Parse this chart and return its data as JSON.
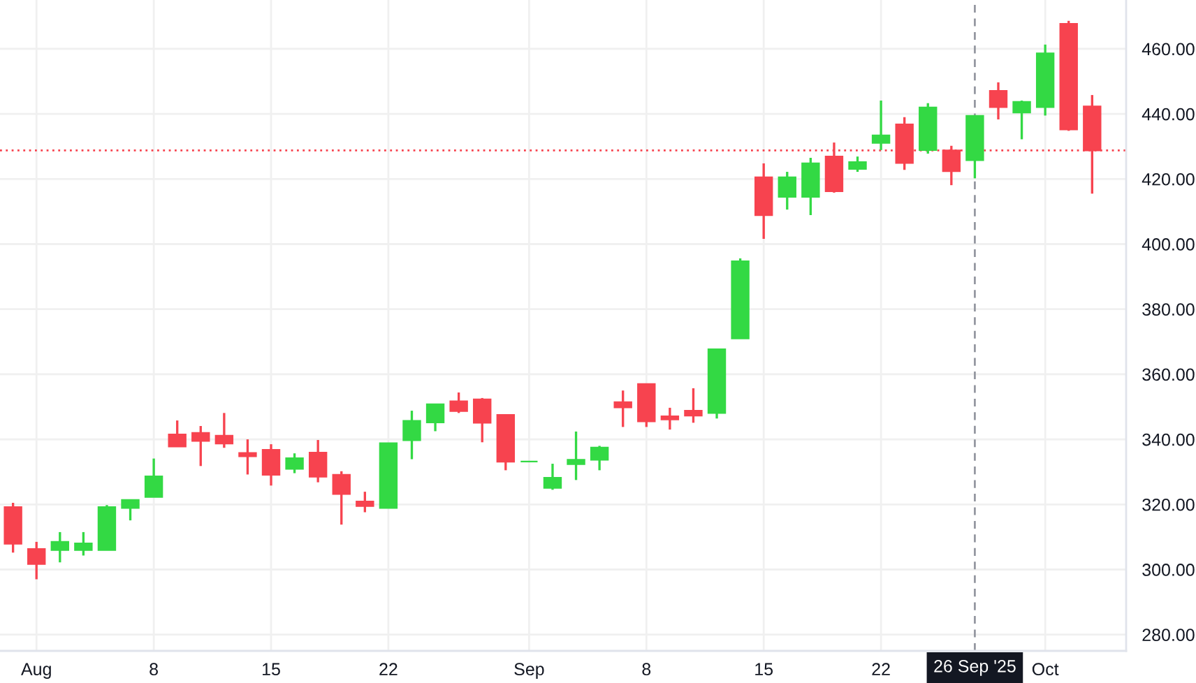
{
  "chart_data": {
    "type": "candlestick",
    "categories": [
      null,
      "Aug",
      null,
      null,
      null,
      null,
      "8",
      null,
      null,
      null,
      null,
      "15",
      null,
      null,
      null,
      null,
      "22",
      null,
      null,
      null,
      null,
      null,
      "Sep",
      null,
      null,
      null,
      null,
      "8",
      null,
      null,
      null,
      null,
      "15",
      null,
      null,
      null,
      null,
      "22",
      null,
      null,
      null,
      "26 Sep '25",
      null,
      null,
      "Oct",
      null,
      null
    ],
    "ohlc": [
      [
        319.2,
        320.5,
        305.2,
        307.9
      ],
      [
        306.3,
        308.5,
        297.0,
        301.7
      ],
      [
        306.0,
        311.5,
        302.2,
        308.5
      ],
      [
        306.0,
        311.5,
        304.3,
        308.0
      ],
      [
        306.0,
        319.8,
        306.0,
        319.2
      ],
      [
        318.9,
        321.4,
        315.1,
        321.4
      ],
      [
        322.3,
        334.1,
        322.3,
        328.6
      ],
      [
        341.5,
        345.8,
        337.8,
        337.8
      ],
      [
        342.0,
        344.1,
        331.8,
        339.5
      ],
      [
        341.1,
        348.1,
        337.4,
        338.7
      ],
      [
        335.8,
        340.0,
        329.2,
        334.8
      ],
      [
        336.8,
        338.5,
        325.8,
        329.1
      ],
      [
        330.9,
        335.7,
        329.6,
        334.2
      ],
      [
        335.9,
        339.8,
        326.8,
        328.5
      ],
      [
        329.1,
        330.2,
        313.8,
        323.2
      ],
      [
        320.9,
        323.9,
        317.6,
        319.5
      ],
      [
        318.9,
        338.8,
        318.9,
        338.8
      ],
      [
        339.7,
        348.8,
        333.9,
        345.7
      ],
      [
        345.2,
        350.8,
        342.5,
        350.8
      ],
      [
        351.7,
        354.4,
        348.1,
        348.7
      ],
      [
        352.3,
        352.7,
        339.1,
        345.1
      ],
      [
        347.5,
        347.5,
        330.5,
        333.1
      ],
      [
        333.2,
        333.2,
        333.2,
        333.2
      ],
      [
        325.1,
        332.5,
        324.5,
        328.2
      ],
      [
        332.4,
        342.4,
        327.5,
        333.7
      ],
      [
        333.7,
        338.0,
        330.5,
        337.5
      ],
      [
        351.4,
        355.0,
        343.8,
        349.8
      ],
      [
        357.0,
        357.0,
        343.8,
        345.5
      ],
      [
        347.1,
        349.7,
        343.0,
        346.1
      ],
      [
        348.8,
        355.7,
        345.1,
        347.3
      ],
      [
        348.1,
        367.7,
        346.4,
        367.7
      ],
      [
        371.0,
        395.6,
        371.0,
        394.7
      ],
      [
        420.5,
        424.8,
        401.6,
        408.9
      ],
      [
        414.5,
        422.2,
        410.6,
        420.5
      ],
      [
        414.5,
        426.5,
        408.9,
        424.8
      ],
      [
        426.9,
        431.2,
        415.8,
        416.2
      ],
      [
        423.1,
        426.9,
        422.2,
        425.2
      ],
      [
        431.1,
        444.1,
        428.9,
        433.4
      ],
      [
        436.8,
        439.0,
        422.8,
        424.9
      ],
      [
        428.9,
        443.3,
        427.8,
        442.0
      ],
      [
        428.8,
        430.2,
        418.1,
        422.4
      ],
      [
        425.8,
        439.4,
        420.2,
        439.4
      ],
      [
        447.1,
        449.7,
        438.3,
        442.1
      ],
      [
        440.4,
        444.1,
        432.2,
        443.7
      ],
      [
        442.1,
        461.3,
        439.5,
        458.6
      ],
      [
        467.7,
        468.6,
        434.8,
        435.2
      ],
      [
        442.3,
        445.8,
        415.5,
        428.8
      ]
    ],
    "colors": [
      "#f7434f",
      "#f7434f",
      "#33d944",
      "#33d944",
      "#33d944",
      "#33d944",
      "#33d944",
      "#f7434f",
      "#f7434f",
      "#f7434f",
      "#f7434f",
      "#f7434f",
      "#33d944",
      "#f7434f",
      "#f7434f",
      "#f7434f",
      "#33d944",
      "#33d944",
      "#33d944",
      "#f7434f",
      "#f7434f",
      "#f7434f",
      "#33d944",
      "#33d944",
      "#33d944",
      "#33d944",
      "#f7434f",
      "#f7434f",
      "#f7434f",
      "#f7434f",
      "#33d944",
      "#33d944",
      "#f7434f",
      "#33d944",
      "#33d944",
      "#f7434f",
      "#33d944",
      "#33d944",
      "#f7434f",
      "#33d944",
      "#f7434f",
      "#33d944",
      "#f7434f",
      "#33d944",
      "#33d944",
      "#f7434f",
      "#f7434f"
    ],
    "ylim": [
      275,
      475
    ],
    "yticks": [
      {
        "value": 280,
        "label": "280.00"
      },
      {
        "value": 300,
        "label": "300.00"
      },
      {
        "value": 320,
        "label": "320.00"
      },
      {
        "value": 340,
        "label": "340.00"
      },
      {
        "value": 360,
        "label": "360.00"
      },
      {
        "value": 380,
        "label": "380.00"
      },
      {
        "value": 400,
        "label": "400.00"
      },
      {
        "value": 420,
        "label": "420.00"
      },
      {
        "value": 440,
        "label": "440.00"
      },
      {
        "value": 460,
        "label": "460.00"
      }
    ],
    "ref_lines": [
      {
        "axis": "x",
        "value": "26 Sep '25",
        "color": "#9598a1",
        "line_style": "dashed"
      },
      {
        "axis": "y",
        "value": 428.8,
        "color": "#f7434f",
        "line_style": "dotted"
      }
    ],
    "grid": true
  }
}
